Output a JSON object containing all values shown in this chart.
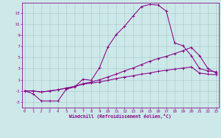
{
  "xlabel": "Windchill (Refroidissement éolien,°C)",
  "bg_color": "#cce8e8",
  "line_color": "#880088",
  "grid_color": "#aacccc",
  "x_ticks": [
    0,
    1,
    2,
    3,
    4,
    5,
    6,
    7,
    8,
    9,
    10,
    11,
    12,
    13,
    14,
    15,
    16,
    17,
    18,
    19,
    20,
    21,
    22,
    23
  ],
  "y_ticks": [
    -3,
    -1,
    1,
    3,
    5,
    7,
    9,
    11,
    13
  ],
  "xlim": [
    -0.3,
    23.3
  ],
  "ylim": [
    -4.0,
    14.8
  ],
  "line1_x": [
    0,
    1,
    2,
    3,
    4,
    5,
    6,
    7,
    8,
    9,
    10,
    11,
    12,
    13,
    14,
    15,
    16,
    17,
    18,
    19,
    20,
    21,
    22,
    23
  ],
  "line1_y": [
    -1.0,
    -1.5,
    -2.8,
    -2.8,
    -2.8,
    -0.7,
    -0.3,
    1.1,
    0.9,
    3.2,
    6.9,
    9.1,
    10.6,
    12.4,
    14.1,
    14.5,
    14.4,
    13.3,
    7.6,
    7.1,
    5.3,
    3.0,
    2.6,
    2.4
  ],
  "line2_x": [
    0,
    1,
    2,
    3,
    4,
    5,
    6,
    7,
    8,
    9,
    10,
    11,
    12,
    13,
    14,
    15,
    16,
    17,
    18,
    19,
    20,
    21,
    22,
    23
  ],
  "line2_y": [
    -1.0,
    -1.0,
    -1.2,
    -1.0,
    -0.8,
    -0.5,
    -0.2,
    0.3,
    0.6,
    1.0,
    1.5,
    2.0,
    2.6,
    3.1,
    3.7,
    4.3,
    4.8,
    5.2,
    5.7,
    6.2,
    6.8,
    5.3,
    3.0,
    2.2
  ],
  "line3_x": [
    0,
    1,
    2,
    3,
    4,
    5,
    6,
    7,
    8,
    9,
    10,
    11,
    12,
    13,
    14,
    15,
    16,
    17,
    18,
    19,
    20,
    21,
    22,
    23
  ],
  "line3_y": [
    -1.0,
    -1.0,
    -1.2,
    -1.0,
    -0.8,
    -0.5,
    -0.2,
    0.2,
    0.4,
    0.6,
    0.9,
    1.2,
    1.5,
    1.7,
    2.0,
    2.2,
    2.5,
    2.7,
    2.9,
    3.1,
    3.3,
    2.2,
    2.0,
    1.9
  ]
}
